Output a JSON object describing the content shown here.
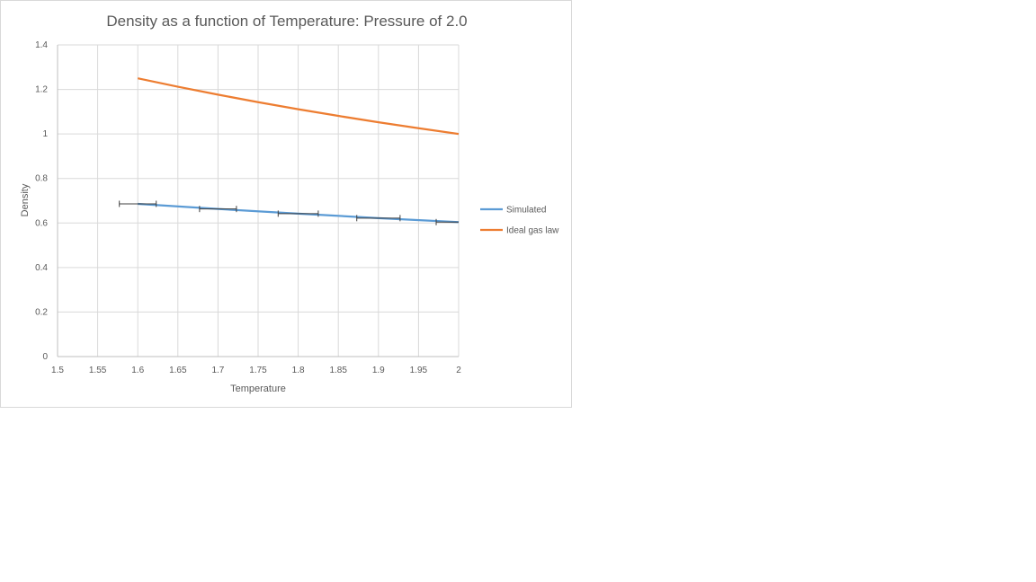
{
  "chart_data": {
    "type": "line",
    "title": "Density as a function of Temperature: Pressure of 2.0",
    "xlabel": "Temperature",
    "ylabel": "Density",
    "xlim": [
      1.5,
      2
    ],
    "ylim": [
      0,
      1.4
    ],
    "x_ticks": [
      "1.5",
      "1.55",
      "1.6",
      "1.65",
      "1.7",
      "1.75",
      "1.8",
      "1.85",
      "1.9",
      "1.95",
      "2"
    ],
    "y_ticks": [
      "0",
      "0.2",
      "0.4",
      "0.6",
      "0.8",
      "1",
      "1.2",
      "1.4"
    ],
    "grid": true,
    "legend": "right",
    "series": [
      {
        "name": "Simulated",
        "color": "#5b9bd5",
        "x": [
          1.6,
          1.7,
          1.8,
          1.9,
          2.0
        ],
        "y": [
          0.686,
          0.663,
          0.642,
          0.622,
          0.604
        ],
        "x_error": [
          0.023,
          0.023,
          0.025,
          0.027,
          0.028
        ]
      },
      {
        "name": "Ideal gas law",
        "color": "#ed7d31",
        "x": [
          1.6,
          1.65,
          1.7,
          1.75,
          1.8,
          1.85,
          1.9,
          1.95,
          2.0
        ],
        "y": [
          1.25,
          1.2121,
          1.1765,
          1.1429,
          1.1111,
          1.0811,
          1.0526,
          1.0256,
          1.0
        ]
      }
    ]
  }
}
